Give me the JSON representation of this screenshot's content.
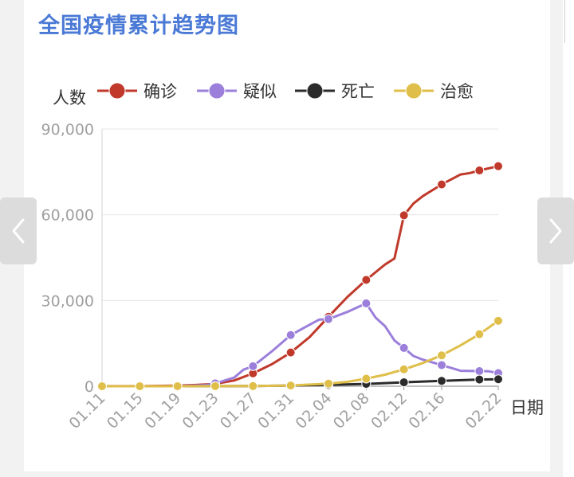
{
  "page": {
    "title": "全国疫情累计趋势图"
  },
  "chart_data": {
    "type": "line",
    "title": "全国疫情累计趋势图",
    "ylabel": "人数",
    "xlabel": "日期",
    "ylim": [
      0,
      90000
    ],
    "y_ticks": [
      "0",
      "30,000",
      "60,000",
      "90,000"
    ],
    "y_tick_values": [
      0,
      30000,
      60000,
      90000
    ],
    "x_tick_labels": [
      "01.11",
      "01.15",
      "01.19",
      "01.23",
      "01.27",
      "01.31",
      "02.04",
      "02.08",
      "02.12",
      "02.16",
      "02.22"
    ],
    "x_tick_days": [
      0,
      4,
      8,
      12,
      16,
      20,
      24,
      28,
      32,
      36,
      42
    ],
    "x_range_days": [
      0,
      42
    ],
    "grid": true,
    "legend_position": "top",
    "series": [
      {
        "name": "确诊",
        "color": "#c0392b",
        "points": [
          [
            0,
            41
          ],
          [
            4,
            41
          ],
          [
            8,
            200
          ],
          [
            10,
            440
          ],
          [
            12,
            830
          ],
          [
            14,
            2000
          ],
          [
            16,
            4500
          ],
          [
            18,
            7700
          ],
          [
            20,
            11800
          ],
          [
            22,
            17200
          ],
          [
            24,
            24300
          ],
          [
            26,
            31200
          ],
          [
            28,
            37200
          ],
          [
            30,
            42600
          ],
          [
            31,
            44700
          ],
          [
            32,
            59800
          ],
          [
            33,
            63900
          ],
          [
            34,
            66500
          ],
          [
            36,
            70600
          ],
          [
            38,
            74100
          ],
          [
            39,
            74600
          ],
          [
            40,
            75500
          ],
          [
            42,
            77000
          ]
        ],
        "marker_days": [
          0,
          4,
          8,
          12,
          16,
          20,
          24,
          28,
          32,
          36,
          40,
          42
        ]
      },
      {
        "name": "疑似",
        "color": "#9b7fdb",
        "points": [
          [
            0,
            0
          ],
          [
            4,
            0
          ],
          [
            8,
            0
          ],
          [
            11,
            400
          ],
          [
            12,
            1000
          ],
          [
            14,
            3000
          ],
          [
            15,
            5800
          ],
          [
            16,
            7000
          ],
          [
            18,
            12200
          ],
          [
            20,
            17900
          ],
          [
            22,
            21500
          ],
          [
            23,
            23300
          ],
          [
            24,
            23500
          ],
          [
            26,
            26000
          ],
          [
            28,
            29000
          ],
          [
            29,
            24000
          ],
          [
            30,
            21000
          ],
          [
            31,
            16000
          ],
          [
            32,
            13400
          ],
          [
            33,
            10600
          ],
          [
            34,
            9300
          ],
          [
            36,
            7400
          ],
          [
            38,
            5400
          ],
          [
            40,
            5300
          ],
          [
            41,
            5200
          ],
          [
            42,
            4600
          ]
        ],
        "marker_days": [
          0,
          4,
          8,
          12,
          16,
          20,
          24,
          28,
          32,
          36,
          40,
          42
        ]
      },
      {
        "name": "死亡",
        "color": "#2b2b2b",
        "points": [
          [
            0,
            0
          ],
          [
            4,
            0
          ],
          [
            8,
            0
          ],
          [
            12,
            25
          ],
          [
            16,
            80
          ],
          [
            20,
            259
          ],
          [
            24,
            490
          ],
          [
            28,
            812
          ],
          [
            32,
            1370
          ],
          [
            36,
            1868
          ],
          [
            40,
            2345
          ],
          [
            42,
            2442
          ]
        ],
        "marker_days": [
          0,
          4,
          8,
          12,
          16,
          20,
          24,
          28,
          32,
          36,
          40,
          42
        ]
      },
      {
        "name": "治愈",
        "color": "#dfbf4a",
        "points": [
          [
            0,
            0
          ],
          [
            4,
            0
          ],
          [
            8,
            0
          ],
          [
            12,
            34
          ],
          [
            16,
            60
          ],
          [
            20,
            243
          ],
          [
            24,
            900
          ],
          [
            26,
            1540
          ],
          [
            28,
            2650
          ],
          [
            30,
            4030
          ],
          [
            32,
            5900
          ],
          [
            34,
            8100
          ],
          [
            36,
            10800
          ],
          [
            38,
            14300
          ],
          [
            40,
            18200
          ],
          [
            42,
            22900
          ]
        ],
        "marker_days": [
          0,
          4,
          8,
          12,
          16,
          20,
          24,
          28,
          32,
          36,
          40,
          42
        ]
      }
    ]
  },
  "nav": {
    "prev_icon": "chevron-left-icon",
    "next_icon": "chevron-right-icon"
  }
}
